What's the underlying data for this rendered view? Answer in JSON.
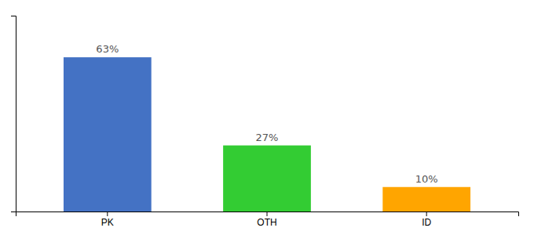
{
  "chart_data": {
    "type": "bar",
    "categories": [
      "PK",
      "OTH",
      "ID"
    ],
    "values": [
      63,
      27,
      10
    ],
    "value_labels": [
      "63%",
      "27%",
      "10%"
    ],
    "colors": [
      "#4472C4",
      "#33CC33",
      "#FFA500"
    ],
    "ylim": [
      0,
      80
    ],
    "yticks": [],
    "tick_labels": "x"
  }
}
